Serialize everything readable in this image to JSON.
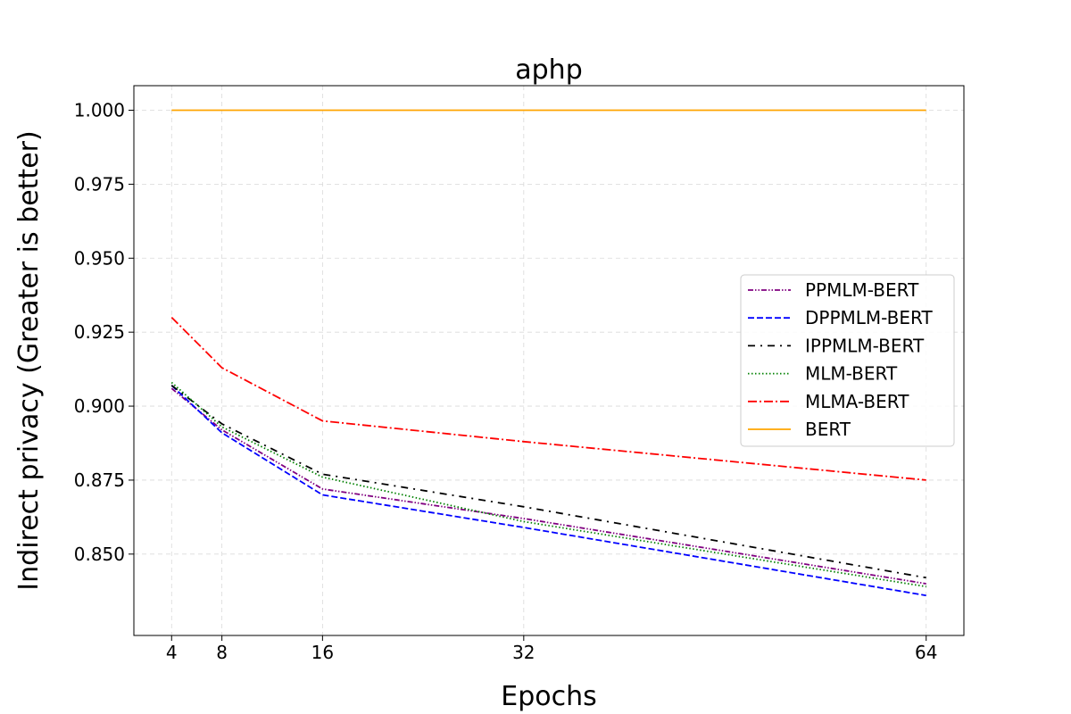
{
  "chart_data": {
    "type": "line",
    "title": "aphp",
    "xlabel": "Epochs",
    "ylabel": "Indirect privacy (Greater is better)",
    "x": [
      4,
      8,
      16,
      32,
      64
    ],
    "x_ticks": [
      "4",
      "8",
      "16",
      "32",
      "64"
    ],
    "xlim": [
      1,
      67
    ],
    "ylim": [
      0.8225,
      1.0083
    ],
    "y_ticks": [
      "0.850",
      "0.875",
      "0.900",
      "0.925",
      "0.950",
      "0.975",
      "1.000"
    ],
    "grid": true,
    "legend_position": "center-right",
    "series": [
      {
        "name": "PPMLM-BERT",
        "values": [
          0.906,
          0.892,
          0.872,
          0.862,
          0.84
        ],
        "color": "#800080",
        "dash": "dashdotdot"
      },
      {
        "name": "DPPMLM-BERT",
        "values": [
          0.907,
          0.891,
          0.87,
          0.859,
          0.836
        ],
        "color": "#0000ff",
        "dash": "dashed"
      },
      {
        "name": "IPPMLM-BERT",
        "values": [
          0.907,
          0.894,
          0.877,
          0.866,
          0.842
        ],
        "color": "#000000",
        "dash": "loosedashdot"
      },
      {
        "name": "MLM-BERT",
        "values": [
          0.908,
          0.893,
          0.876,
          0.861,
          0.839
        ],
        "color": "#008000",
        "dash": "dotted"
      },
      {
        "name": "MLMA-BERT",
        "values": [
          0.93,
          0.913,
          0.895,
          0.888,
          0.875
        ],
        "color": "#ff0000",
        "dash": "dashdot"
      },
      {
        "name": "BERT",
        "values": [
          1.0,
          1.0,
          1.0,
          1.0,
          1.0
        ],
        "color": "#ffa500",
        "dash": "solid"
      }
    ]
  }
}
